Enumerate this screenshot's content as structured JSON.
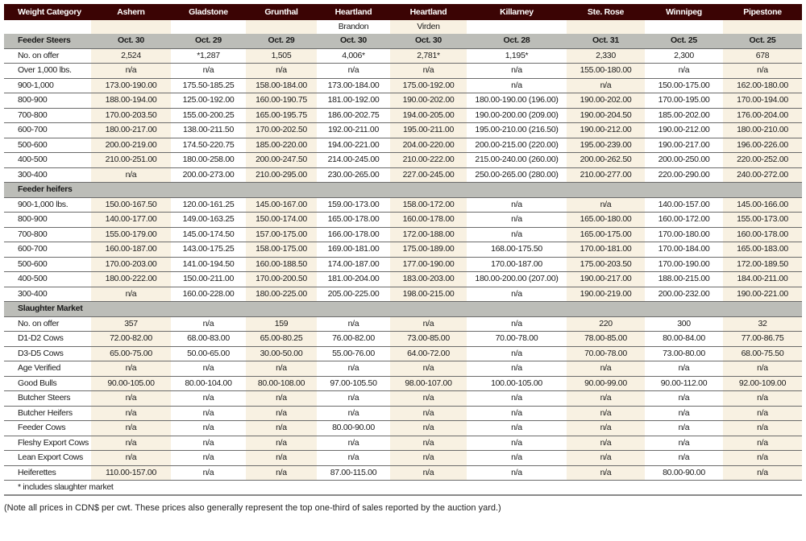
{
  "columns": [
    {
      "name": "Ashern",
      "sub": "",
      "shaded": true
    },
    {
      "name": "Gladstone",
      "sub": "",
      "shaded": false
    },
    {
      "name": "Grunthal",
      "sub": "",
      "shaded": true
    },
    {
      "name": "Heartland",
      "sub": "Brandon",
      "shaded": false
    },
    {
      "name": "Heartland",
      "sub": "Virden",
      "shaded": true
    },
    {
      "name": "Killarney",
      "sub": "",
      "shaded": false
    },
    {
      "name": "Ste. Rose",
      "sub": "",
      "shaded": true
    },
    {
      "name": "Winnipeg",
      "sub": "",
      "shaded": false
    },
    {
      "name": "Pipestone",
      "sub": "",
      "shaded": true
    }
  ],
  "header_label": "Weight Category",
  "sections": [
    {
      "title": "Feeder Steers",
      "dates": [
        "Oct. 30",
        "Oct. 29",
        "Oct. 29",
        "Oct. 30",
        "Oct. 30",
        "Oct. 28",
        "Oct. 31",
        "Oct. 25",
        "Oct. 25"
      ],
      "rows": [
        {
          "label": "No. on offer",
          "values": [
            "2,524",
            "*1,287",
            "1,505",
            "4,006*",
            "2,781*",
            "1,195*",
            "2,330",
            "2,300",
            "678"
          ]
        },
        {
          "label": "Over 1,000 lbs.",
          "values": [
            "n/a",
            "n/a",
            "n/a",
            "n/a",
            "n/a",
            "n/a",
            "155.00-180.00",
            "n/a",
            "n/a"
          ]
        },
        {
          "label": "900-1,000",
          "values": [
            "173.00-190.00",
            "175.50-185.25",
            "158.00-184.00",
            "173.00-184.00",
            "175.00-192.00",
            "n/a",
            "n/a",
            "150.00-175.00",
            "162.00-180.00"
          ]
        },
        {
          "label": "800-900",
          "values": [
            "188.00-194.00",
            "125.00-192.00",
            "160.00-190.75",
            "181.00-192.00",
            "190.00-202.00",
            "180.00-190.00 (196.00)",
            "190.00-202.00",
            "170.00-195.00",
            "170.00-194.00"
          ]
        },
        {
          "label": "700-800",
          "values": [
            "170.00-203.50",
            "155.00-200.25",
            "165.00-195.75",
            "186.00-202.75",
            "194.00-205.00",
            "190.00-200.00 (209.00)",
            "190.00-204.50",
            "185.00-202.00",
            "176.00-204.00"
          ]
        },
        {
          "label": "600-700",
          "values": [
            "180.00-217.00",
            "138.00-211.50",
            "170.00-202.50",
            "192.00-211.00",
            "195.00-211.00",
            "195.00-210.00 (216.50)",
            "190.00-212.00",
            "190.00-212.00",
            "180.00-210.00"
          ]
        },
        {
          "label": "500-600",
          "values": [
            "200.00-219.00",
            "174.50-220.75",
            "185.00-220.00",
            "194.00-221.00",
            "204.00-220.00",
            "200.00-215.00 (220.00)",
            "195.00-239.00",
            "190.00-217.00",
            "196.00-226.00"
          ]
        },
        {
          "label": "400-500",
          "values": [
            "210.00-251.00",
            "180.00-258.00",
            "200.00-247.50",
            "214.00-245.00",
            "210.00-222.00",
            "215.00-240.00 (260.00)",
            "200.00-262.50",
            "200.00-250.00",
            "220.00-252.00"
          ]
        },
        {
          "label": "300-400",
          "values": [
            "n/a",
            "200.00-273.00",
            "210.00-295.00",
            "230.00-265.00",
            "227.00-245.00",
            "250.00-265.00 (280.00)",
            "210.00-277.00",
            "220.00-290.00",
            "240.00-272.00"
          ]
        }
      ]
    },
    {
      "title": "Feeder heifers",
      "dates": [],
      "rows": [
        {
          "label": "900-1,000 lbs.",
          "values": [
            "150.00-167.50",
            "120.00-161.25",
            "145.00-167.00",
            "159.00-173.00",
            "158.00-172.00",
            "n/a",
            "n/a",
            "140.00-157.00",
            "145.00-166.00"
          ]
        },
        {
          "label": "800-900",
          "values": [
            "140.00-177.00",
            "149.00-163.25",
            "150.00-174.00",
            "165.00-178.00",
            "160.00-178.00",
            "n/a",
            "165.00-180.00",
            "160.00-172.00",
            "155.00-173.00"
          ]
        },
        {
          "label": "700-800",
          "values": [
            "155.00-179.00",
            "145.00-174.50",
            "157.00-175.00",
            "166.00-178.00",
            "172.00-188.00",
            "n/a",
            "165.00-175.00",
            "170.00-180.00",
            "160.00-178.00"
          ]
        },
        {
          "label": "600-700",
          "values": [
            "160.00-187.00",
            "143.00-175.25",
            "158.00-175.00",
            "169.00-181.00",
            "175.00-189.00",
            "168.00-175.50",
            "170.00-181.00",
            "170.00-184.00",
            "165.00-183.00"
          ]
        },
        {
          "label": "500-600",
          "values": [
            "170.00-203.00",
            "141.00-194.50",
            "160.00-188.50",
            "174.00-187.00",
            "177.00-190.00",
            "170.00-187.00",
            "175.00-203.50",
            "170.00-190.00",
            "172.00-189.50"
          ]
        },
        {
          "label": "400-500",
          "values": [
            "180.00-222.00",
            "150.00-211.00",
            "170.00-200.50",
            "181.00-204.00",
            "183.00-203.00",
            "180.00-200.00 (207.00)",
            "190.00-217.00",
            "188.00-215.00",
            "184.00-211.00"
          ]
        },
        {
          "label": "300-400",
          "values": [
            "n/a",
            "160.00-228.00",
            "180.00-225.00",
            "205.00-225.00",
            "198.00-215.00",
            "n/a",
            "190.00-219.00",
            "200.00-232.00",
            "190.00-221.00"
          ]
        }
      ]
    },
    {
      "title": "Slaughter Market",
      "dates": [],
      "rows": [
        {
          "label": "No. on offer",
          "values": [
            "357",
            "n/a",
            "159",
            "n/a",
            "n/a",
            "n/a",
            "220",
            "300",
            "32"
          ]
        },
        {
          "label": "D1-D2 Cows",
          "values": [
            "72.00-82.00",
            "68.00-83.00",
            "65.00-80.25",
            "76.00-82.00",
            "73.00-85.00",
            "70.00-78.00",
            "78.00-85.00",
            "80.00-84.00",
            "77.00-86.75"
          ]
        },
        {
          "label": "D3-D5 Cows",
          "values": [
            "65.00-75.00",
            "50.00-65.00",
            "30.00-50.00",
            "55.00-76.00",
            "64.00-72.00",
            "n/a",
            "70.00-78.00",
            "73.00-80.00",
            "68.00-75.50"
          ]
        },
        {
          "label": "Age Verified",
          "values": [
            "n/a",
            "n/a",
            "n/a",
            "n/a",
            "n/a",
            "n/a",
            "n/a",
            "n/a",
            "n/a"
          ]
        },
        {
          "label": "Good Bulls",
          "values": [
            "90.00-105.00",
            "80.00-104.00",
            "80.00-108.00",
            "97.00-105.50",
            "98.00-107.00",
            "100.00-105.00",
            "90.00-99.00",
            "90.00-112.00",
            "92.00-109.00"
          ]
        },
        {
          "label": "Butcher Steers",
          "values": [
            "n/a",
            "n/a",
            "n/a",
            "n/a",
            "n/a",
            "n/a",
            "n/a",
            "n/a",
            "n/a"
          ]
        },
        {
          "label": "Butcher Heifers",
          "values": [
            "n/a",
            "n/a",
            "n/a",
            "n/a",
            "n/a",
            "n/a",
            "n/a",
            "n/a",
            "n/a"
          ]
        },
        {
          "label": "Feeder Cows",
          "values": [
            "n/a",
            "n/a",
            "n/a",
            "80.00-90.00",
            "n/a",
            "n/a",
            "n/a",
            "n/a",
            "n/a"
          ]
        },
        {
          "label": "Fleshy Export Cows",
          "values": [
            "n/a",
            "n/a",
            "n/a",
            "n/a",
            "n/a",
            "n/a",
            "n/a",
            "n/a",
            "n/a"
          ]
        },
        {
          "label": "Lean Export Cows",
          "values": [
            "n/a",
            "n/a",
            "n/a",
            "n/a",
            "n/a",
            "n/a",
            "n/a",
            "n/a",
            "n/a"
          ]
        },
        {
          "label": "Heiferettes",
          "values": [
            "110.00-157.00",
            "n/a",
            "n/a",
            "87.00-115.00",
            "n/a",
            "n/a",
            "n/a",
            "80.00-90.00",
            "n/a"
          ]
        }
      ]
    }
  ],
  "footnote": "* includes slaughter market",
  "note": "(Note all prices in CDN$ per cwt. These prices also generally represent the top one-third of sales reported by the auction yard.)",
  "colors": {
    "header": "#3b0404",
    "section": "#bcbdb8",
    "shaded_column": "#f8f1e2"
  }
}
